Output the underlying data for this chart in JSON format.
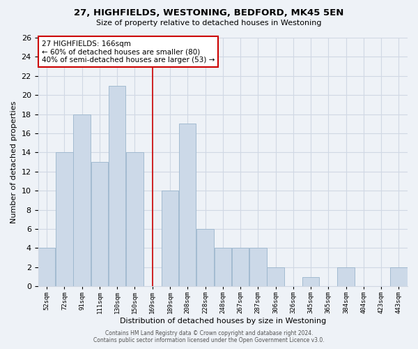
{
  "title": "27, HIGHFIELDS, WESTONING, BEDFORD, MK45 5EN",
  "subtitle": "Size of property relative to detached houses in Westoning",
  "xlabel": "Distribution of detached houses by size in Westoning",
  "ylabel": "Number of detached properties",
  "bin_labels": [
    "52sqm",
    "72sqm",
    "91sqm",
    "111sqm",
    "130sqm",
    "150sqm",
    "169sqm",
    "189sqm",
    "208sqm",
    "228sqm",
    "248sqm",
    "267sqm",
    "287sqm",
    "306sqm",
    "326sqm",
    "345sqm",
    "365sqm",
    "384sqm",
    "404sqm",
    "423sqm",
    "443sqm"
  ],
  "bar_heights": [
    4,
    14,
    18,
    13,
    21,
    14,
    0,
    10,
    17,
    6,
    4,
    4,
    4,
    2,
    0,
    1,
    0,
    2,
    0,
    0,
    2
  ],
  "bar_color": "#ccd9e8",
  "bar_edgecolor": "#9ab5cc",
  "vline_label_index": 6,
  "vline_color": "#cc0000",
  "ylim": [
    0,
    26
  ],
  "yticks": [
    0,
    2,
    4,
    6,
    8,
    10,
    12,
    14,
    16,
    18,
    20,
    22,
    24,
    26
  ],
  "annotation_text": "27 HIGHFIELDS: 166sqm\n← 60% of detached houses are smaller (80)\n40% of semi-detached houses are larger (53) →",
  "annotation_box_edgecolor": "#cc0000",
  "footer_line1": "Contains HM Land Registry data © Crown copyright and database right 2024.",
  "footer_line2": "Contains public sector information licensed under the Open Government Licence v3.0.",
  "background_color": "#eef2f7",
  "grid_color": "#d0d8e4"
}
